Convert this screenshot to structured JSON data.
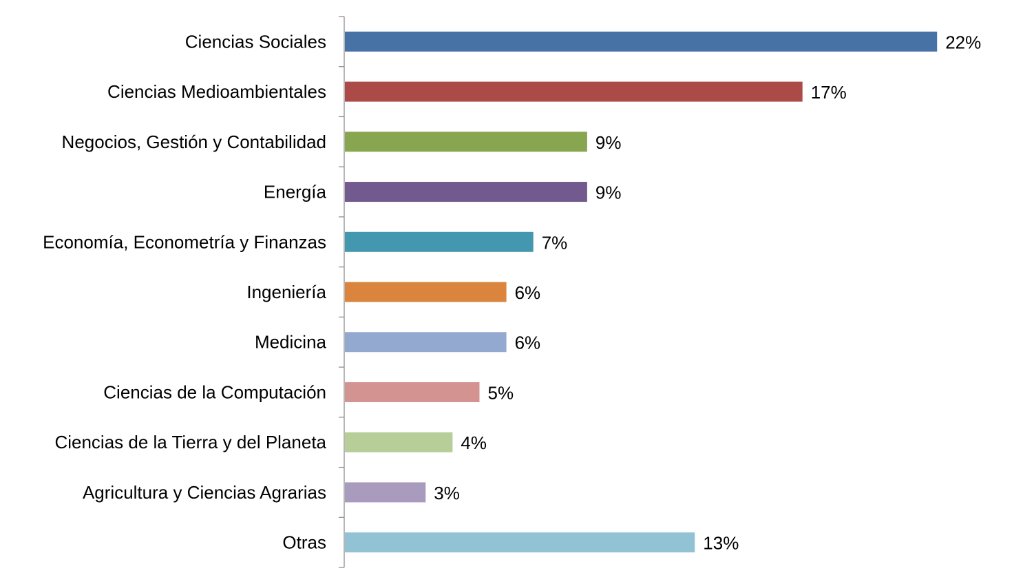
{
  "chart_data": {
    "type": "bar",
    "orientation": "horizontal",
    "categories": [
      "Ciencias Sociales",
      "Ciencias Medioambientales",
      "Negocios, Gestión y Contabilidad",
      "Energía",
      "Economía, Econometría y Finanzas",
      "Ingeniería",
      "Medicina",
      "Ciencias de la Computación",
      "Ciencias de la Tierra y del Planeta",
      "Agricultura y Ciencias Agrarias",
      "Otras"
    ],
    "values": [
      22,
      17,
      9,
      9,
      7,
      6,
      6,
      5,
      4,
      3,
      13
    ],
    "value_labels": [
      "22%",
      "17%",
      "9%",
      "9%",
      "7%",
      "6%",
      "6%",
      "5%",
      "4%",
      "3%",
      "13%"
    ],
    "colors": [
      "#4672A5",
      "#AC4A48",
      "#88A54F",
      "#725A8E",
      "#4397AF",
      "#DA843E",
      "#94A9CF",
      "#D39391",
      "#B8CE98",
      "#A99BBD",
      "#91C3D5"
    ],
    "title": "",
    "xlabel": "",
    "ylabel": "",
    "xlim": [
      0,
      25
    ],
    "grid": false,
    "legend": "none"
  }
}
